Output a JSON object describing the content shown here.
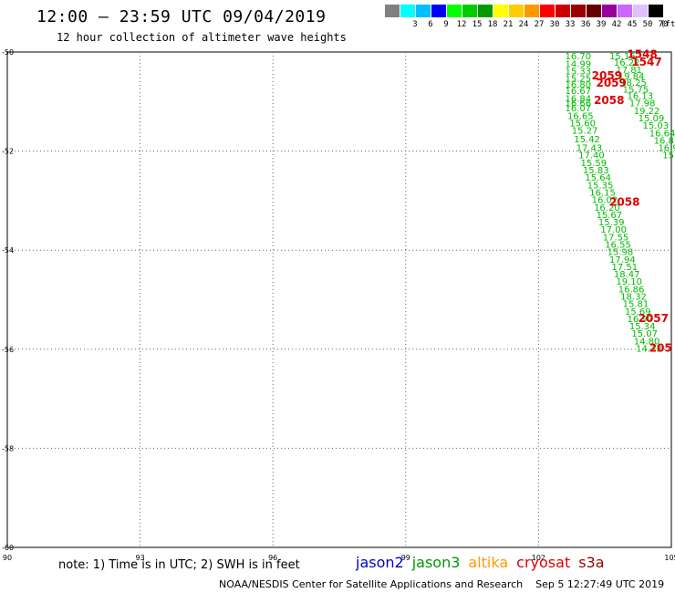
{
  "header": {
    "title": "12:00 – 23:59 UTC 09/04/2019",
    "subtitle": "12 hour collection of altimeter wave heights"
  },
  "legend": {
    "unit": "(ft)",
    "bins": [
      {
        "label": "",
        "color": "#808080"
      },
      {
        "label": "3",
        "color": "#00ffff"
      },
      {
        "label": "6",
        "color": "#00bfff"
      },
      {
        "label": "9",
        "color": "#0000ff"
      },
      {
        "label": "12",
        "color": "#00ff00"
      },
      {
        "label": "15",
        "color": "#00cc00"
      },
      {
        "label": "18",
        "color": "#009900"
      },
      {
        "label": "21",
        "color": "#ffff00"
      },
      {
        "label": "24",
        "color": "#ffcc00"
      },
      {
        "label": "27",
        "color": "#ff9900"
      },
      {
        "label": "30",
        "color": "#ff0000"
      },
      {
        "label": "33",
        "color": "#cc0000"
      },
      {
        "label": "36",
        "color": "#990000"
      },
      {
        "label": "39",
        "color": "#660000"
      },
      {
        "label": "42",
        "color": "#990099"
      },
      {
        "label": "45",
        "color": "#cc66ff"
      },
      {
        "label": "50",
        "color": "#e0c0ff"
      },
      {
        "label": "70",
        "color": "#000000"
      }
    ]
  },
  "map": {
    "lon_ticks": [
      "90",
      "93",
      "96",
      "99",
      "102",
      "105"
    ],
    "lat_ticks": [
      "-50",
      "-52",
      "-54",
      "-56",
      "-58",
      "-60"
    ],
    "lon_range": [
      90,
      105
    ],
    "lat_range": [
      -50,
      -60
    ]
  },
  "tracks": {
    "jason3_left": {
      "color": "#00bb00",
      "points": [
        {
          "lon": 102.6,
          "lat": -50.15,
          "text": "16.70"
        },
        {
          "lon": 102.6,
          "lat": -50.3,
          "text": "14.99"
        },
        {
          "lon": 102.6,
          "lat": -50.45,
          "text": "15.33"
        },
        {
          "lon": 102.6,
          "lat": -50.6,
          "text": "15.25"
        },
        {
          "lon": 102.6,
          "lat": -50.72,
          "text": "16.80"
        },
        {
          "lon": 102.6,
          "lat": -50.85,
          "text": "16.67"
        },
        {
          "lon": 102.6,
          "lat": -51.0,
          "text": "16.84"
        },
        {
          "lon": 102.6,
          "lat": -51.1,
          "text": "16.66"
        },
        {
          "lon": 102.6,
          "lat": -51.2,
          "text": "16.07"
        },
        {
          "lon": 102.65,
          "lat": -51.35,
          "text": "16.65"
        },
        {
          "lon": 102.7,
          "lat": -51.5,
          "text": "15.60"
        },
        {
          "lon": 102.75,
          "lat": -51.65,
          "text": "15.27"
        },
        {
          "lon": 102.8,
          "lat": -51.82,
          "text": "15.42"
        },
        {
          "lon": 102.85,
          "lat": -52.0,
          "text": "17.43"
        },
        {
          "lon": 102.9,
          "lat": -52.15,
          "text": "17.40"
        },
        {
          "lon": 102.95,
          "lat": -52.3,
          "text": "15.59"
        },
        {
          "lon": 103.0,
          "lat": -52.45,
          "text": "15.83"
        },
        {
          "lon": 103.05,
          "lat": -52.6,
          "text": "15.64"
        },
        {
          "lon": 103.1,
          "lat": -52.75,
          "text": "15.35"
        },
        {
          "lon": 103.15,
          "lat": -52.9,
          "text": "16.15"
        },
        {
          "lon": 103.2,
          "lat": -53.05,
          "text": "16.02"
        },
        {
          "lon": 103.25,
          "lat": -53.2,
          "text": "16.20"
        },
        {
          "lon": 103.3,
          "lat": -53.35,
          "text": "15.67"
        },
        {
          "lon": 103.35,
          "lat": -53.5,
          "text": "15.39"
        },
        {
          "lon": 103.4,
          "lat": -53.65,
          "text": "17.00"
        },
        {
          "lon": 103.45,
          "lat": -53.8,
          "text": "17.55"
        },
        {
          "lon": 103.5,
          "lat": -53.95,
          "text": "16.55"
        },
        {
          "lon": 103.55,
          "lat": -54.1,
          "text": "15.98"
        },
        {
          "lon": 103.6,
          "lat": -54.25,
          "text": "17.94"
        },
        {
          "lon": 103.65,
          "lat": -54.4,
          "text": "17.51"
        },
        {
          "lon": 103.7,
          "lat": -54.55,
          "text": "18.47"
        },
        {
          "lon": 103.75,
          "lat": -54.7,
          "text": "19.10"
        },
        {
          "lon": 103.8,
          "lat": -54.85,
          "text": "16.86"
        },
        {
          "lon": 103.85,
          "lat": -55.0,
          "text": "18.32"
        },
        {
          "lon": 103.9,
          "lat": -55.15,
          "text": "15.81"
        },
        {
          "lon": 103.95,
          "lat": -55.3,
          "text": "15.69"
        },
        {
          "lon": 104.0,
          "lat": -55.45,
          "text": "16.97"
        },
        {
          "lon": 104.05,
          "lat": -55.6,
          "text": "15.34"
        },
        {
          "lon": 104.1,
          "lat": -55.75,
          "text": "15.07"
        },
        {
          "lon": 104.15,
          "lat": -55.9,
          "text": "14.80"
        },
        {
          "lon": 104.2,
          "lat": -56.05,
          "text": "14.32"
        }
      ]
    },
    "jason3_right": {
      "color": "#00bb00",
      "points": [
        {
          "lon": 103.6,
          "lat": -50.15,
          "text": "15.16"
        },
        {
          "lon": 103.7,
          "lat": -50.28,
          "text": "16.22"
        },
        {
          "lon": 103.75,
          "lat": -50.42,
          "text": "17.81"
        },
        {
          "lon": 103.8,
          "lat": -50.55,
          "text": "19.84"
        },
        {
          "lon": 103.85,
          "lat": -50.68,
          "text": "18.25"
        },
        {
          "lon": 103.9,
          "lat": -50.82,
          "text": "15.75"
        },
        {
          "lon": 104.0,
          "lat": -50.95,
          "text": "16.13"
        },
        {
          "lon": 104.05,
          "lat": -51.1,
          "text": "17.98"
        },
        {
          "lon": 104.15,
          "lat": -51.25,
          "text": "19.22"
        },
        {
          "lon": 104.25,
          "lat": -51.4,
          "text": "15.09"
        },
        {
          "lon": 104.35,
          "lat": -51.55,
          "text": "15.03"
        },
        {
          "lon": 104.5,
          "lat": -51.7,
          "text": "16.64"
        },
        {
          "lon": 104.6,
          "lat": -51.85,
          "text": "16.8"
        },
        {
          "lon": 104.7,
          "lat": -52.0,
          "text": "16.9"
        },
        {
          "lon": 104.8,
          "lat": -52.15,
          "text": "15"
        }
      ]
    },
    "cryosat": {
      "color": "#dd0000",
      "points": [
        {
          "lon": 104.0,
          "lat": -50.12,
          "text": "1548"
        },
        {
          "lon": 104.1,
          "lat": -50.28,
          "text": "1547"
        },
        {
          "lon": 103.2,
          "lat": -50.55,
          "text": "2059"
        },
        {
          "lon": 103.3,
          "lat": -50.7,
          "text": "2059"
        },
        {
          "lon": 103.25,
          "lat": -51.05,
          "text": "2058"
        },
        {
          "lon": 103.6,
          "lat": -53.1,
          "text": "2058"
        },
        {
          "lon": 104.25,
          "lat": -55.45,
          "text": "2057"
        },
        {
          "lon": 104.5,
          "lat": -56.05,
          "text": "205"
        }
      ]
    }
  },
  "notes": {
    "text": "note: 1) Time is in UTC; 2) SWH is in feet"
  },
  "satellites": [
    {
      "name": "jason2",
      "color": "#0000cc"
    },
    {
      "name": "jason3",
      "color": "#009900"
    },
    {
      "name": "altika",
      "color": "#ff9900"
    },
    {
      "name": "cryosat",
      "color": "#dd0000"
    },
    {
      "name": "s3a",
      "color": "#990000"
    }
  ],
  "footer": {
    "credit": "NOAA/NESDIS Center for Satellite Applications and Research",
    "timestamp": "Sep  5 12:27:49 UTC 2019"
  }
}
